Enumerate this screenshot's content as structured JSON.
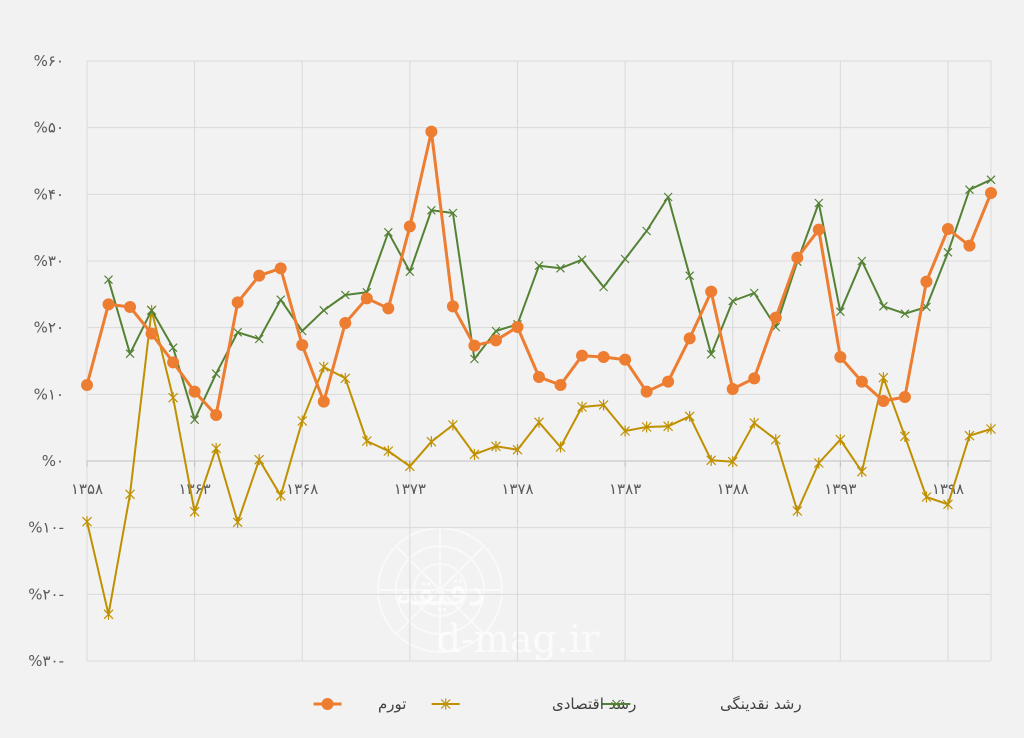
{
  "chart_data": {
    "type": "line",
    "x": [
      1358,
      1359,
      1360,
      1361,
      1362,
      1363,
      1364,
      1365,
      1366,
      1367,
      1368,
      1369,
      1370,
      1371,
      1372,
      1373,
      1374,
      1375,
      1376,
      1377,
      1378,
      1379,
      1380,
      1381,
      1382,
      1383,
      1384,
      1385,
      1386,
      1387,
      1388,
      1389,
      1390,
      1391,
      1392,
      1393,
      1394,
      1395,
      1396,
      1397,
      1398,
      1399,
      1400
    ],
    "x_tick_values": [
      1358,
      1363,
      1368,
      1373,
      1378,
      1383,
      1388,
      1393,
      1398
    ],
    "x_tick_labels": [
      "۱۳۵۸",
      "۱۳۶۳",
      "۱۳۶۸",
      "۱۳۷۳",
      "۱۳۷۸",
      "۱۳۸۳",
      "۱۳۸۸",
      "۱۳۹۳",
      "۱۳۹۸"
    ],
    "y_ticks": [
      {
        "value": 60,
        "label": "%۶۰"
      },
      {
        "value": 50,
        "label": "%۵۰"
      },
      {
        "value": 40,
        "label": "%۴۰"
      },
      {
        "value": 30,
        "label": "%۳۰"
      },
      {
        "value": 20,
        "label": "%۲۰"
      },
      {
        "value": 10,
        "label": "%۱۰"
      },
      {
        "value": 0,
        "label": "%۰"
      },
      {
        "value": -10,
        "label": "%۱۰-"
      },
      {
        "value": -20,
        "label": "%۲۰-"
      },
      {
        "value": -30,
        "label": "%۳۰-"
      }
    ],
    "ylim": [
      -30,
      60
    ],
    "grid": true,
    "legend_position": "bottom",
    "series": [
      {
        "name": "تورم",
        "color": "#ed7d31",
        "marker": "circle",
        "values": [
          11.4,
          23.5,
          23.1,
          19.1,
          14.8,
          10.4,
          6.9,
          23.8,
          27.8,
          28.9,
          17.4,
          8.9,
          20.7,
          24.4,
          22.9,
          35.2,
          49.4,
          23.2,
          17.3,
          18.1,
          20.1,
          12.6,
          11.4,
          15.8,
          15.6,
          15.2,
          10.4,
          11.9,
          18.4,
          25.4,
          10.8,
          12.4,
          21.5,
          30.5,
          34.7,
          15.6,
          11.9,
          9.0,
          9.6,
          26.9,
          34.8,
          32.3,
          40.2
        ]
      },
      {
        "name": "رشد اقتصادی",
        "color": "#bf9000",
        "marker": "star",
        "values": [
          -9.1,
          -23.0,
          -5.0,
          22.6,
          9.5,
          -7.6,
          1.9,
          -9.2,
          0.2,
          -5.2,
          6.0,
          14.1,
          12.4,
          3.0,
          1.5,
          -0.8,
          2.9,
          5.4,
          1.0,
          2.2,
          1.7,
          5.8,
          2.1,
          8.1,
          8.4,
          4.5,
          5.1,
          5.2,
          6.7,
          0.1,
          -0.1,
          5.7,
          3.2,
          -7.5,
          -0.3,
          3.2,
          -1.6,
          12.5,
          3.7,
          -5.4,
          -6.5,
          3.8,
          4.8
        ]
      },
      {
        "name": "رشد نقدینگی",
        "color": "#548235",
        "marker": "x",
        "values": [
          null,
          27.2,
          16.1,
          22.6,
          17.0,
          6.2,
          13.1,
          19.3,
          18.3,
          24.2,
          19.5,
          22.6,
          24.9,
          25.3,
          34.3,
          28.4,
          37.6,
          37.2,
          15.3,
          19.5,
          20.5,
          29.3,
          28.9,
          30.2,
          26.1,
          30.3,
          34.5,
          39.6,
          27.8,
          16.0,
          24.0,
          25.2,
          20.1,
          29.9,
          38.7,
          22.4,
          30.0,
          23.2,
          22.1,
          23.1,
          31.3,
          40.7,
          42.2
        ]
      }
    ]
  },
  "watermark": {
    "text": "d-mag.ir",
    "logo": "دقیقه"
  }
}
